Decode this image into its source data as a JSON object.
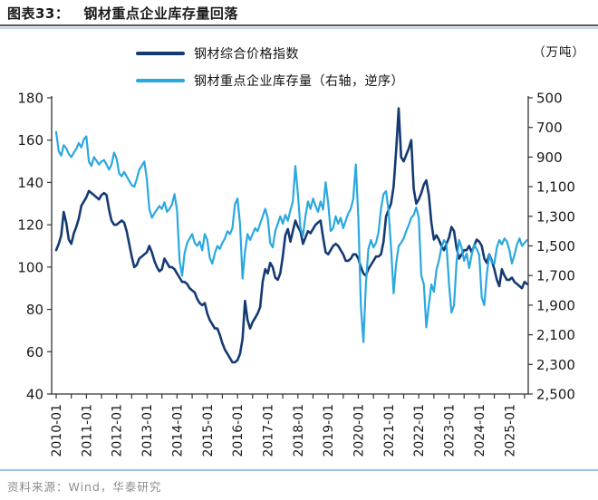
{
  "header": {
    "figure_label": "图表33：",
    "title": "钢材重点企业库存量回落"
  },
  "legend": [
    {
      "label": "钢材综合价格指数",
      "color": "#153a73"
    },
    {
      "label": "钢材重点企业库存量（右轴，逆序）",
      "color": "#2aa8e0"
    }
  ],
  "footer": {
    "source": "资料来源：Wind，华泰研究"
  },
  "chart_data": {
    "type": "line",
    "title": "钢材重点企业库存量回落",
    "grid": "off",
    "legend_position": "top",
    "x_start": "2010-01",
    "x_step_months": 1,
    "x_tick_labels": [
      "2010-01",
      "2011-01",
      "2012-01",
      "2013-01",
      "2014-01",
      "2015-01",
      "2016-01",
      "2017-01",
      "2018-01",
      "2019-01",
      "2020-01",
      "2021-01",
      "2022-01",
      "2023-01",
      "2024-01",
      "2025-01"
    ],
    "left_axis": {
      "min": 40,
      "max": 180,
      "ticks": [
        180,
        160,
        140,
        120,
        100,
        80,
        60,
        40
      ]
    },
    "right_axis": {
      "unit": "（万吨）",
      "min": 500,
      "max": 2500,
      "reversed": true,
      "ticks": [
        500,
        700,
        900,
        1100,
        1300,
        1500,
        1700,
        1900,
        2100,
        2300,
        2500
      ]
    },
    "series": [
      {
        "name": "钢材综合价格指数",
        "axis": "left",
        "color": "#153a73",
        "width": 2.6,
        "values": [
          108,
          111,
          115,
          126,
          121,
          113,
          111,
          116,
          119,
          123,
          129,
          131,
          133,
          136,
          135,
          134,
          133,
          132,
          134,
          135,
          134,
          127,
          122,
          120,
          120,
          121,
          122,
          121,
          117,
          111,
          105,
          100,
          101,
          104,
          105,
          106,
          107,
          110,
          107,
          103,
          100,
          98,
          99,
          104,
          102,
          100,
          100,
          99,
          97,
          95,
          93,
          93,
          92,
          90,
          89,
          88,
          85,
          83,
          82,
          83,
          78,
          75,
          73,
          71,
          71,
          68,
          64,
          61,
          59,
          57,
          55,
          55,
          56,
          59,
          66,
          84,
          75,
          71,
          74,
          76,
          78,
          81,
          93,
          99,
          97,
          102,
          100,
          95,
          94,
          97,
          105,
          115,
          118,
          112,
          117,
          122,
          119,
          117,
          111,
          114,
          117,
          116,
          118,
          120,
          121,
          122,
          114,
          107,
          106,
          108,
          110,
          111,
          110,
          108,
          106,
          103,
          103,
          104,
          106,
          106,
          104,
          100,
          97,
          96,
          99,
          101,
          103,
          105,
          105,
          106,
          112,
          124,
          127,
          130,
          138,
          155,
          175,
          152,
          150,
          153,
          156,
          160,
          137,
          130,
          132,
          135,
          139,
          141,
          134,
          121,
          113,
          115,
          113,
          110,
          108,
          111,
          114,
          119,
          117,
          109,
          104,
          106,
          108,
          108,
          110,
          107,
          110,
          113,
          112,
          110,
          104,
          102,
          106,
          103,
          99,
          94,
          91,
          99,
          96,
          94,
          94,
          95,
          93,
          92,
          91,
          90,
          93,
          92
        ]
      },
      {
        "name": "钢材重点企业库存量（右轴，逆序）",
        "axis": "right",
        "color": "#2aa8e0",
        "width": 2.2,
        "values": [
          730,
          860,
          890,
          820,
          840,
          880,
          900,
          870,
          845,
          805,
          835,
          780,
          760,
          930,
          960,
          900,
          925,
          950,
          930,
          920,
          950,
          985,
          950,
          870,
          910,
          1010,
          1030,
          1000,
          1030,
          1060,
          1090,
          1100,
          1050,
          985,
          960,
          930,
          1050,
          1250,
          1310,
          1280,
          1255,
          1230,
          1250,
          1205,
          1270,
          1250,
          1220,
          1150,
          1260,
          1600,
          1700,
          1550,
          1480,
          1450,
          1420,
          1480,
          1500,
          1470,
          1530,
          1420,
          1460,
          1580,
          1620,
          1550,
          1500,
          1520,
          1480,
          1450,
          1400,
          1420,
          1380,
          1220,
          1180,
          1350,
          1720,
          1540,
          1420,
          1460,
          1420,
          1380,
          1400,
          1350,
          1300,
          1250,
          1310,
          1480,
          1510,
          1400,
          1350,
          1300,
          1350,
          1290,
          1330,
          1260,
          1200,
          960,
          1150,
          1380,
          1430,
          1300,
          1200,
          1250,
          1180,
          1230,
          1270,
          1200,
          1255,
          1070,
          1210,
          1400,
          1380,
          1300,
          1350,
          1310,
          1380,
          1330,
          1280,
          1250,
          1180,
          950,
          1310,
          1910,
          2150,
          1760,
          1520,
          1460,
          1510,
          1480,
          1410,
          1250,
          1150,
          1130,
          1260,
          1510,
          1820,
          1620,
          1500,
          1480,
          1450,
          1400,
          1360,
          1310,
          1290,
          1240,
          1310,
          1700,
          1760,
          2050,
          1900,
          1760,
          1810,
          1660,
          1600,
          1510,
          1460,
          1490,
          1760,
          1950,
          1900,
          1610,
          1460,
          1510,
          1600,
          1550,
          1650,
          1560,
          1490,
          1520,
          1560,
          1850,
          1900,
          1700,
          1560,
          1610,
          1620,
          1510,
          1460,
          1490,
          1450,
          1470,
          1530,
          1620,
          1560,
          1490,
          1450,
          1500,
          1480,
          1460
        ]
      }
    ]
  }
}
